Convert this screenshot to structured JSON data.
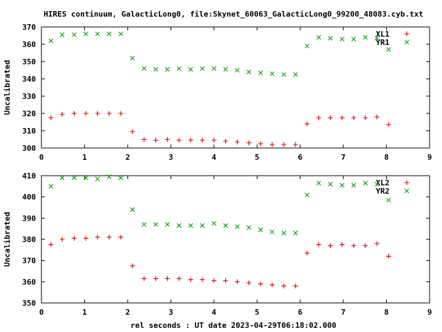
{
  "figure": {
    "title": "HIRES continuum, GalacticLong0, file:Skynet_60063_GalacticLong0_99200_48083.cyb.txt",
    "xlabel": "rel seconds : UT date 2023-04-29T06:18:02.000"
  },
  "colors": {
    "red": "#e00000",
    "green": "#00a000",
    "axis": "#000000"
  },
  "chart_data": [
    {
      "type": "scatter",
      "ylabel": "Uncalibrated",
      "xlim": [
        0,
        9
      ],
      "ylim": [
        300,
        370
      ],
      "xticks": [
        "0",
        "1",
        "2",
        "3",
        "4",
        "5",
        "6",
        "7",
        "8",
        "9"
      ],
      "yticks": [
        "300",
        "310",
        "320",
        "330",
        "340",
        "350",
        "360",
        "370"
      ],
      "series": [
        {
          "name": "XL1",
          "marker": "plus",
          "color": "red",
          "x": [
            0.22,
            0.48,
            0.76,
            1.03,
            1.3,
            1.57,
            1.84,
            2.11,
            2.38,
            2.65,
            2.92,
            3.19,
            3.46,
            3.73,
            4.0,
            4.27,
            4.54,
            4.81,
            5.08,
            5.35,
            5.62,
            5.89,
            6.16,
            6.43,
            6.7,
            6.97,
            7.24,
            7.51,
            7.78,
            8.05
          ],
          "y": [
            317.5,
            319.5,
            320,
            320,
            320,
            320,
            320,
            309.5,
            305,
            304.5,
            305,
            304.5,
            304.5,
            304.5,
            304.5,
            304,
            303.5,
            303,
            302.5,
            302,
            302,
            302,
            314,
            317.5,
            317.5,
            317.5,
            317.5,
            317.5,
            318,
            313.5
          ]
        },
        {
          "name": "YR1",
          "marker": "cross",
          "color": "green",
          "x": [
            0.22,
            0.48,
            0.76,
            1.03,
            1.3,
            1.57,
            1.84,
            2.11,
            2.38,
            2.65,
            2.92,
            3.19,
            3.46,
            3.73,
            4.0,
            4.27,
            4.54,
            4.81,
            5.08,
            5.35,
            5.62,
            5.89,
            6.16,
            6.43,
            6.7,
            6.97,
            7.24,
            7.51,
            7.78,
            8.05
          ],
          "y": [
            362,
            365.5,
            365.5,
            366,
            366,
            366,
            366,
            352,
            346,
            345.5,
            345.5,
            346,
            345.5,
            346,
            346,
            345.5,
            345,
            344,
            343.5,
            343,
            342.5,
            342.5,
            359,
            364,
            363.5,
            363,
            363,
            364,
            363.5,
            357
          ]
        }
      ]
    },
    {
      "type": "scatter",
      "ylabel": "Uncalibrated",
      "xlim": [
        0,
        9
      ],
      "ylim": [
        350,
        410
      ],
      "xticks": [
        "0",
        "1",
        "2",
        "3",
        "4",
        "5",
        "6",
        "7",
        "8",
        "9"
      ],
      "yticks": [
        "350",
        "360",
        "370",
        "380",
        "390",
        "400",
        "410"
      ],
      "series": [
        {
          "name": "XL2",
          "marker": "plus",
          "color": "red",
          "x": [
            0.22,
            0.48,
            0.76,
            1.03,
            1.3,
            1.57,
            1.84,
            2.11,
            2.38,
            2.65,
            2.92,
            3.19,
            3.46,
            3.73,
            4.0,
            4.27,
            4.54,
            4.81,
            5.08,
            5.35,
            5.62,
            5.89,
            6.16,
            6.43,
            6.7,
            6.97,
            7.24,
            7.51,
            7.78,
            8.05
          ],
          "y": [
            377.5,
            380,
            380.5,
            380.5,
            381,
            381,
            381,
            367.5,
            361.5,
            361.5,
            361.5,
            361.5,
            361,
            361,
            360.5,
            360.5,
            360,
            359.5,
            359,
            358.5,
            358,
            358,
            373.5,
            377.5,
            377,
            377.5,
            377,
            377,
            378,
            372
          ]
        },
        {
          "name": "YR2",
          "marker": "cross",
          "color": "green",
          "x": [
            0.22,
            0.48,
            0.76,
            1.03,
            1.3,
            1.57,
            1.84,
            2.11,
            2.38,
            2.65,
            2.92,
            3.19,
            3.46,
            3.73,
            4.0,
            4.27,
            4.54,
            4.81,
            5.08,
            5.35,
            5.62,
            5.89,
            6.16,
            6.43,
            6.7,
            6.97,
            7.24,
            7.51,
            7.78,
            8.05
          ],
          "y": [
            405,
            409,
            409,
            409,
            408.5,
            409.5,
            409,
            394,
            387,
            387,
            387,
            386.5,
            386.5,
            386.5,
            387.5,
            386.5,
            386,
            385.5,
            384.5,
            383.5,
            383,
            383,
            401,
            406.5,
            406,
            405.5,
            405.5,
            406.5,
            406,
            398.5
          ]
        }
      ]
    }
  ]
}
